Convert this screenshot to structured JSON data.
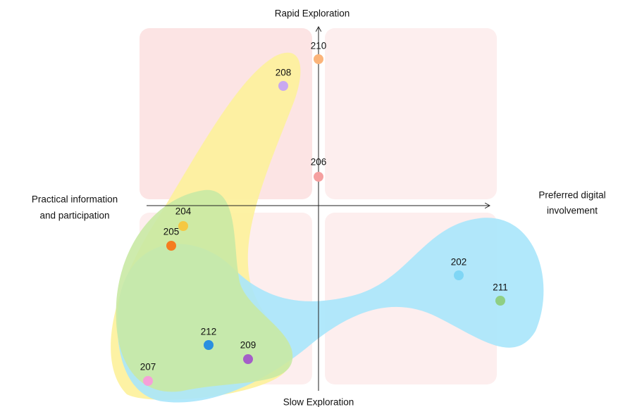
{
  "axes": {
    "top": "Rapid Exploration",
    "bottom": "Slow Exploration",
    "left": [
      "Practical information",
      "and participation"
    ],
    "right": [
      "Preferred digital",
      "involvement"
    ]
  },
  "points": [
    {
      "label": "210"
    },
    {
      "label": "208"
    },
    {
      "label": "206"
    },
    {
      "label": "204"
    },
    {
      "label": "205"
    },
    {
      "label": "202"
    },
    {
      "label": "211"
    },
    {
      "label": "212"
    },
    {
      "label": "209"
    },
    {
      "label": "207"
    }
  ]
}
